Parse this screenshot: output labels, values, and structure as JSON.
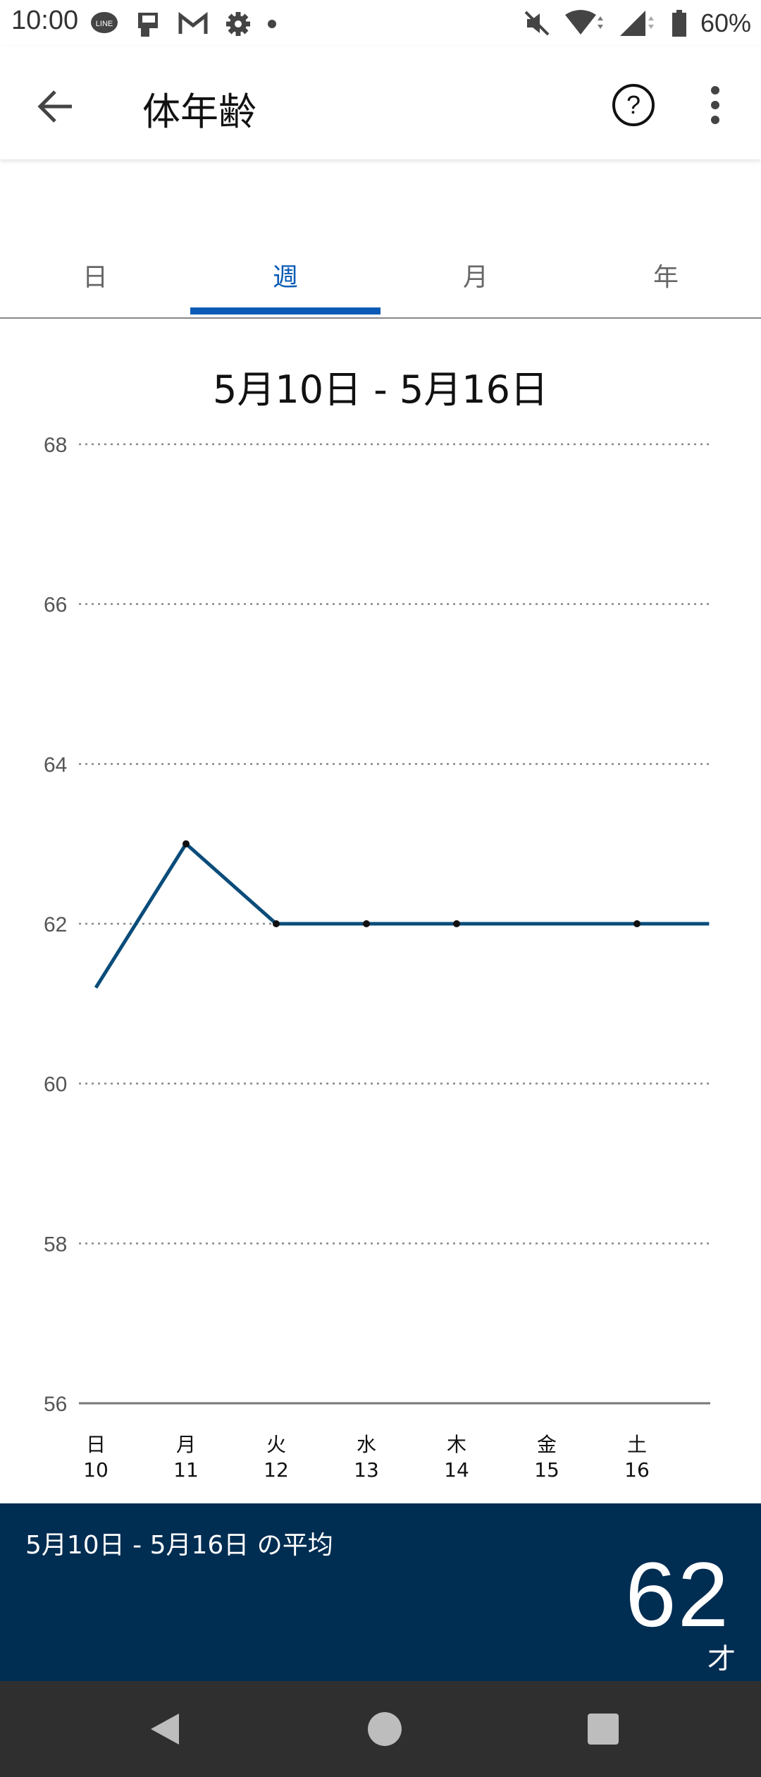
{
  "status_bar": {
    "time": "10:00",
    "battery_pct": "60%",
    "icons_left": [
      "line-icon",
      "phone-icon",
      "gmail-icon",
      "settings-icon",
      "dot-icon"
    ],
    "icons_right": [
      "mute-icon",
      "wifi-icon",
      "signal-icon",
      "battery-icon"
    ]
  },
  "app_bar": {
    "title": "体年齢",
    "back_icon": "arrow-left-icon",
    "help_icon": "help-circle-icon",
    "more_icon": "more-vert-icon"
  },
  "tabs": [
    {
      "label": "日",
      "active": false
    },
    {
      "label": "週",
      "active": true
    },
    {
      "label": "月",
      "active": false
    },
    {
      "label": "年",
      "active": false
    }
  ],
  "range_title": "5月10日 - 5月16日",
  "chart_data": {
    "type": "line",
    "title": "5月10日 - 5月16日",
    "yticks": [
      "68",
      "66",
      "64",
      "62",
      "60",
      "58",
      "56"
    ],
    "ylim": [
      56,
      68
    ],
    "categories": [
      {
        "day": "日",
        "date": "10"
      },
      {
        "day": "月",
        "date": "11"
      },
      {
        "day": "火",
        "date": "12"
      },
      {
        "day": "水",
        "date": "13"
      },
      {
        "day": "木",
        "date": "14"
      },
      {
        "day": "金",
        "date": "15"
      },
      {
        "day": "土",
        "date": "16"
      }
    ],
    "series": [
      {
        "points": [
          {
            "x": 0,
            "y": 61.2,
            "marker": false
          },
          {
            "x": 1,
            "y": 63,
            "marker": true
          },
          {
            "x": 2,
            "y": 62,
            "marker": true
          },
          {
            "x": 3,
            "y": 62,
            "marker": true
          },
          {
            "x": 4,
            "y": 62,
            "marker": true
          },
          {
            "x": 5,
            "y": 62,
            "marker": false
          },
          {
            "x": 6,
            "y": 62,
            "marker": true
          },
          {
            "x": 6.8,
            "y": 62,
            "marker": false
          }
        ]
      }
    ],
    "line_color": "#0a4c7a",
    "grid": "dotted"
  },
  "summary": {
    "label": "5月10日 - 5月16日 の平均",
    "value": "62",
    "unit": "才"
  },
  "nav_bar": {
    "back_icon": "nav-back-icon",
    "home_icon": "nav-home-icon",
    "recents_icon": "nav-recents-icon"
  },
  "colors": {
    "accent": "#0a5bb5",
    "summary_bg": "#002d52",
    "nav_bg": "#2f2f2f"
  }
}
